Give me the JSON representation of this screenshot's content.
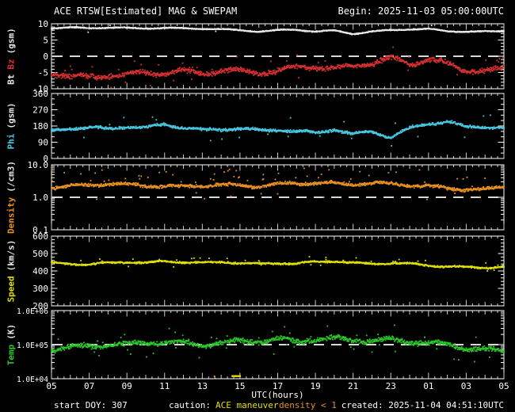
{
  "header": {
    "title": "ACE RTSW[Estimated] MAG & SWEPAM",
    "begin": "Begin: 2025-11-03 05:00:00UTC"
  },
  "footer": {
    "start": "start DOY: 307",
    "caution_label": "caution:",
    "maneuver": "ACE maneuver",
    "density_flag": "density < 1",
    "created": "created: 2025-11-04 04:51:10UTC"
  },
  "colors": {
    "background": "#000000",
    "frame": "#ffffff",
    "dashed": "#d8d8d8",
    "bt": "#e8e8e8",
    "bz": "#d83030",
    "phi": "#48c8e0",
    "density": "#e89020",
    "speed": "#e0e000",
    "temp": "#28c828"
  },
  "chart_data": {
    "type": "scatter",
    "title": "ACE RTSW[Estimated] MAG & SWEPAM",
    "begin": "2025-11-03 05:00:00UTC",
    "xlabel": "UTC(hours)",
    "x_range": [
      5,
      29
    ],
    "x_major_ticks": [
      5,
      7,
      9,
      11,
      13,
      15,
      17,
      19,
      21,
      23,
      25,
      27,
      29
    ],
    "x_tick_labels": [
      "05",
      "07",
      "09",
      "11",
      "13",
      "15",
      "17",
      "19",
      "21",
      "23",
      "01",
      "03",
      "05"
    ],
    "anchor_hours": [
      5,
      6,
      7,
      8,
      9,
      10,
      11,
      12,
      13,
      14,
      15,
      16,
      17,
      18,
      19,
      20,
      21,
      22,
      23,
      24,
      25,
      26,
      27,
      28,
      29
    ],
    "maneuver_marker": {
      "label": "ACE maneuver",
      "color": "#e0e000",
      "from_hour": 14.55,
      "to_hour": 15.05
    },
    "density_markers": {
      "label": "density < 1",
      "color": "#e89020",
      "hours": [
        13.65
      ]
    },
    "panels": [
      {
        "id": "bt-bz",
        "ylabel": [
          {
            "text": "Bt",
            "color": "#e8e8e8"
          },
          {
            "text": "Bz",
            "color": "#d83030"
          },
          {
            "text": "(gsm)",
            "color": "#e8e8e8"
          }
        ],
        "scale": "linear",
        "ylim": [
          -10,
          10
        ],
        "major_ticks": [
          10,
          5,
          0,
          -5,
          -10
        ],
        "major_labels": [
          "10",
          "5",
          "0",
          "-5",
          "-10"
        ],
        "minor_step": 1,
        "dashed_at": 0,
        "series": [
          {
            "name": "Bt",
            "color": "#e8e8e8",
            "jitter": 0.22,
            "outlier_prob": 0.003,
            "outlier_mag": 1.2,
            "outlier_up": 0.3,
            "passes": 2,
            "step": 0.033,
            "anchors": [
              8.6,
              8.8,
              8.7,
              8.8,
              8.7,
              8.6,
              8.7,
              8.6,
              8.5,
              8.3,
              8.0,
              7.6,
              8.0,
              8.2,
              7.6,
              7.9,
              6.9,
              7.6,
              8.0,
              8.3,
              8.4,
              7.7,
              7.6,
              7.6,
              7.7
            ]
          },
          {
            "name": "Bz",
            "color": "#d83030",
            "jitter": 1.1,
            "outlier_prob": 0.025,
            "outlier_mag": 3.0,
            "outlier_up": 0.75,
            "passes": 2,
            "step": 0.04,
            "anchors": [
              -5.0,
              -6.2,
              -6.8,
              -5.6,
              -5.8,
              -5.2,
              -5.0,
              -4.6,
              -5.2,
              -4.2,
              -4.6,
              -5.0,
              -4.5,
              -3.6,
              -3.0,
              -4.2,
              -3.0,
              -2.0,
              -0.8,
              -2.2,
              -0.8,
              -2.6,
              -4.2,
              -4.6,
              -4.0
            ]
          }
        ]
      },
      {
        "id": "phi",
        "ylabel": [
          {
            "text": "Phi",
            "color": "#48c8e0"
          },
          {
            "text": "(gsm)",
            "color": "#e8e8e8"
          }
        ],
        "scale": "linear",
        "ylim": [
          0,
          360
        ],
        "major_ticks": [
          360,
          270,
          180,
          90,
          0
        ],
        "major_labels": [
          "360",
          "270",
          "180",
          "90",
          "0"
        ],
        "minor_step": 30,
        "dashed_at": null,
        "series": [
          {
            "name": "Phi",
            "color": "#48c8e0",
            "jitter": 11,
            "outlier_prob": 0.02,
            "outlier_mag": 55,
            "outlier_up": 0.5,
            "passes": 2,
            "step": 0.04,
            "anchors": [
              150,
              168,
              172,
              162,
              178,
              168,
              188,
              172,
              155,
              162,
              168,
              152,
              162,
              148,
              142,
              162,
              132,
              150,
              118,
              165,
              195,
              205,
              172,
              178,
              168
            ]
          }
        ]
      },
      {
        "id": "density",
        "ylabel": [
          {
            "text": "Density",
            "color": "#e89020"
          },
          {
            "text": "(/cm3)",
            "color": "#e8e8e8"
          }
        ],
        "scale": "log",
        "ylim": [
          0.1,
          10
        ],
        "major_ticks": [
          10,
          1,
          0.1
        ],
        "major_labels": [
          "10.0",
          "1.0",
          "0.1"
        ],
        "dashed_at": 1,
        "series": [
          {
            "name": "Density",
            "color": "#e89020",
            "jitter": 0.07,
            "outlier_prob": 0.05,
            "outlier_mag": 0.35,
            "outlier_up": 0.85,
            "passes": 2,
            "step": 0.04,
            "anchors": [
              2.0,
              2.2,
              2.4,
              2.6,
              2.4,
              2.3,
              2.2,
              2.1,
              2.3,
              2.4,
              2.3,
              2.2,
              2.5,
              2.7,
              2.8,
              2.6,
              2.5,
              2.8,
              2.6,
              2.4,
              2.2,
              1.9,
              1.8,
              1.7,
              2.1
            ]
          }
        ]
      },
      {
        "id": "speed",
        "ylabel": [
          {
            "text": "Speed",
            "color": "#e0e000"
          },
          {
            "text": "(km/s)",
            "color": "#e8e8e8"
          }
        ],
        "scale": "linear",
        "ylim": [
          200,
          600
        ],
        "major_ticks": [
          600,
          500,
          400,
          300,
          200
        ],
        "major_labels": [
          "600",
          "500",
          "400",
          "300",
          "200"
        ],
        "minor_step": 20,
        "dashed_at": null,
        "series": [
          {
            "name": "Speed",
            "color": "#e0e000",
            "jitter": 7,
            "outlier_prob": 0.03,
            "outlier_mag": 22,
            "outlier_up": 0.8,
            "passes": 2,
            "step": 0.04,
            "anchors": [
              445,
              442,
              436,
              446,
              452,
              446,
              456,
              450,
              446,
              452,
              446,
              440,
              446,
              442,
              452,
              456,
              446,
              440,
              446,
              440,
              432,
              426,
              421,
              419,
              424
            ]
          }
        ]
      },
      {
        "id": "temp",
        "ylabel": [
          {
            "text": "Temp",
            "color": "#28c828"
          },
          {
            "text": "(K)",
            "color": "#e8e8e8"
          }
        ],
        "scale": "log",
        "ylim": [
          10000,
          1000000
        ],
        "major_ticks": [
          1000000,
          100000,
          10000
        ],
        "major_labels": [
          "1.0E+06",
          "1.0E+05",
          "1.0E+04"
        ],
        "small_labels": true,
        "dashed_at": 100000,
        "series": [
          {
            "name": "Temp",
            "color": "#28c828",
            "jitter": 0.1,
            "outlier_prob": 0.04,
            "outlier_mag": 0.3,
            "outlier_up": 0.5,
            "passes": 2,
            "step": 0.04,
            "anchors": [
              71000,
              83000,
              89000,
              100000,
              100000,
              112000,
              120000,
              112000,
              100000,
              112000,
              126000,
              126000,
              138000,
              126000,
              141000,
              151000,
              141000,
              126000,
              138000,
              126000,
              112000,
              100000,
              79000,
              71000,
              63000
            ]
          }
        ]
      }
    ]
  }
}
